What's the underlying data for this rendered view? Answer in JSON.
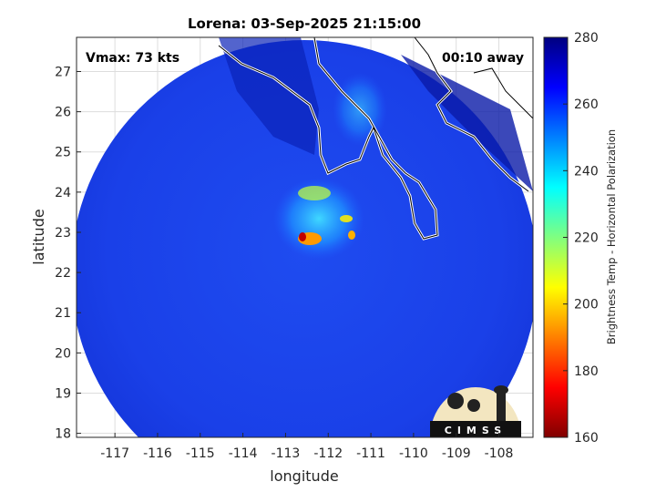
{
  "chart_data": {
    "type": "heatmap",
    "title": "Lorena: 03-Sep-2025 21:15:00",
    "xlabel": "longitude",
    "ylabel": "latitude",
    "xlim": [
      -117.9,
      -107.2
    ],
    "ylim": [
      17.9,
      27.85
    ],
    "x_ticks": [
      -117,
      -116,
      -115,
      -114,
      -113,
      -112,
      -111,
      -110,
      -109,
      -108
    ],
    "y_ticks": [
      18,
      19,
      20,
      21,
      22,
      23,
      24,
      25,
      26,
      27
    ],
    "grid": true,
    "annotations": {
      "vmax": "Vmax: 73 kts",
      "time_offset": "00:10 away"
    },
    "colorbar": {
      "label": "Brightness Temp - Horizontal Polarization",
      "range": [
        160,
        280
      ],
      "ticks": [
        160,
        180,
        200,
        220,
        240,
        260,
        280
      ],
      "colormap": "jet",
      "placement": "right"
    },
    "storm_center": {
      "lon": -112.8,
      "lat": 22.9,
      "min_temp_approx": 170
    },
    "background_temp_approx": 262
  },
  "logo": {
    "text": "CIMSS"
  }
}
